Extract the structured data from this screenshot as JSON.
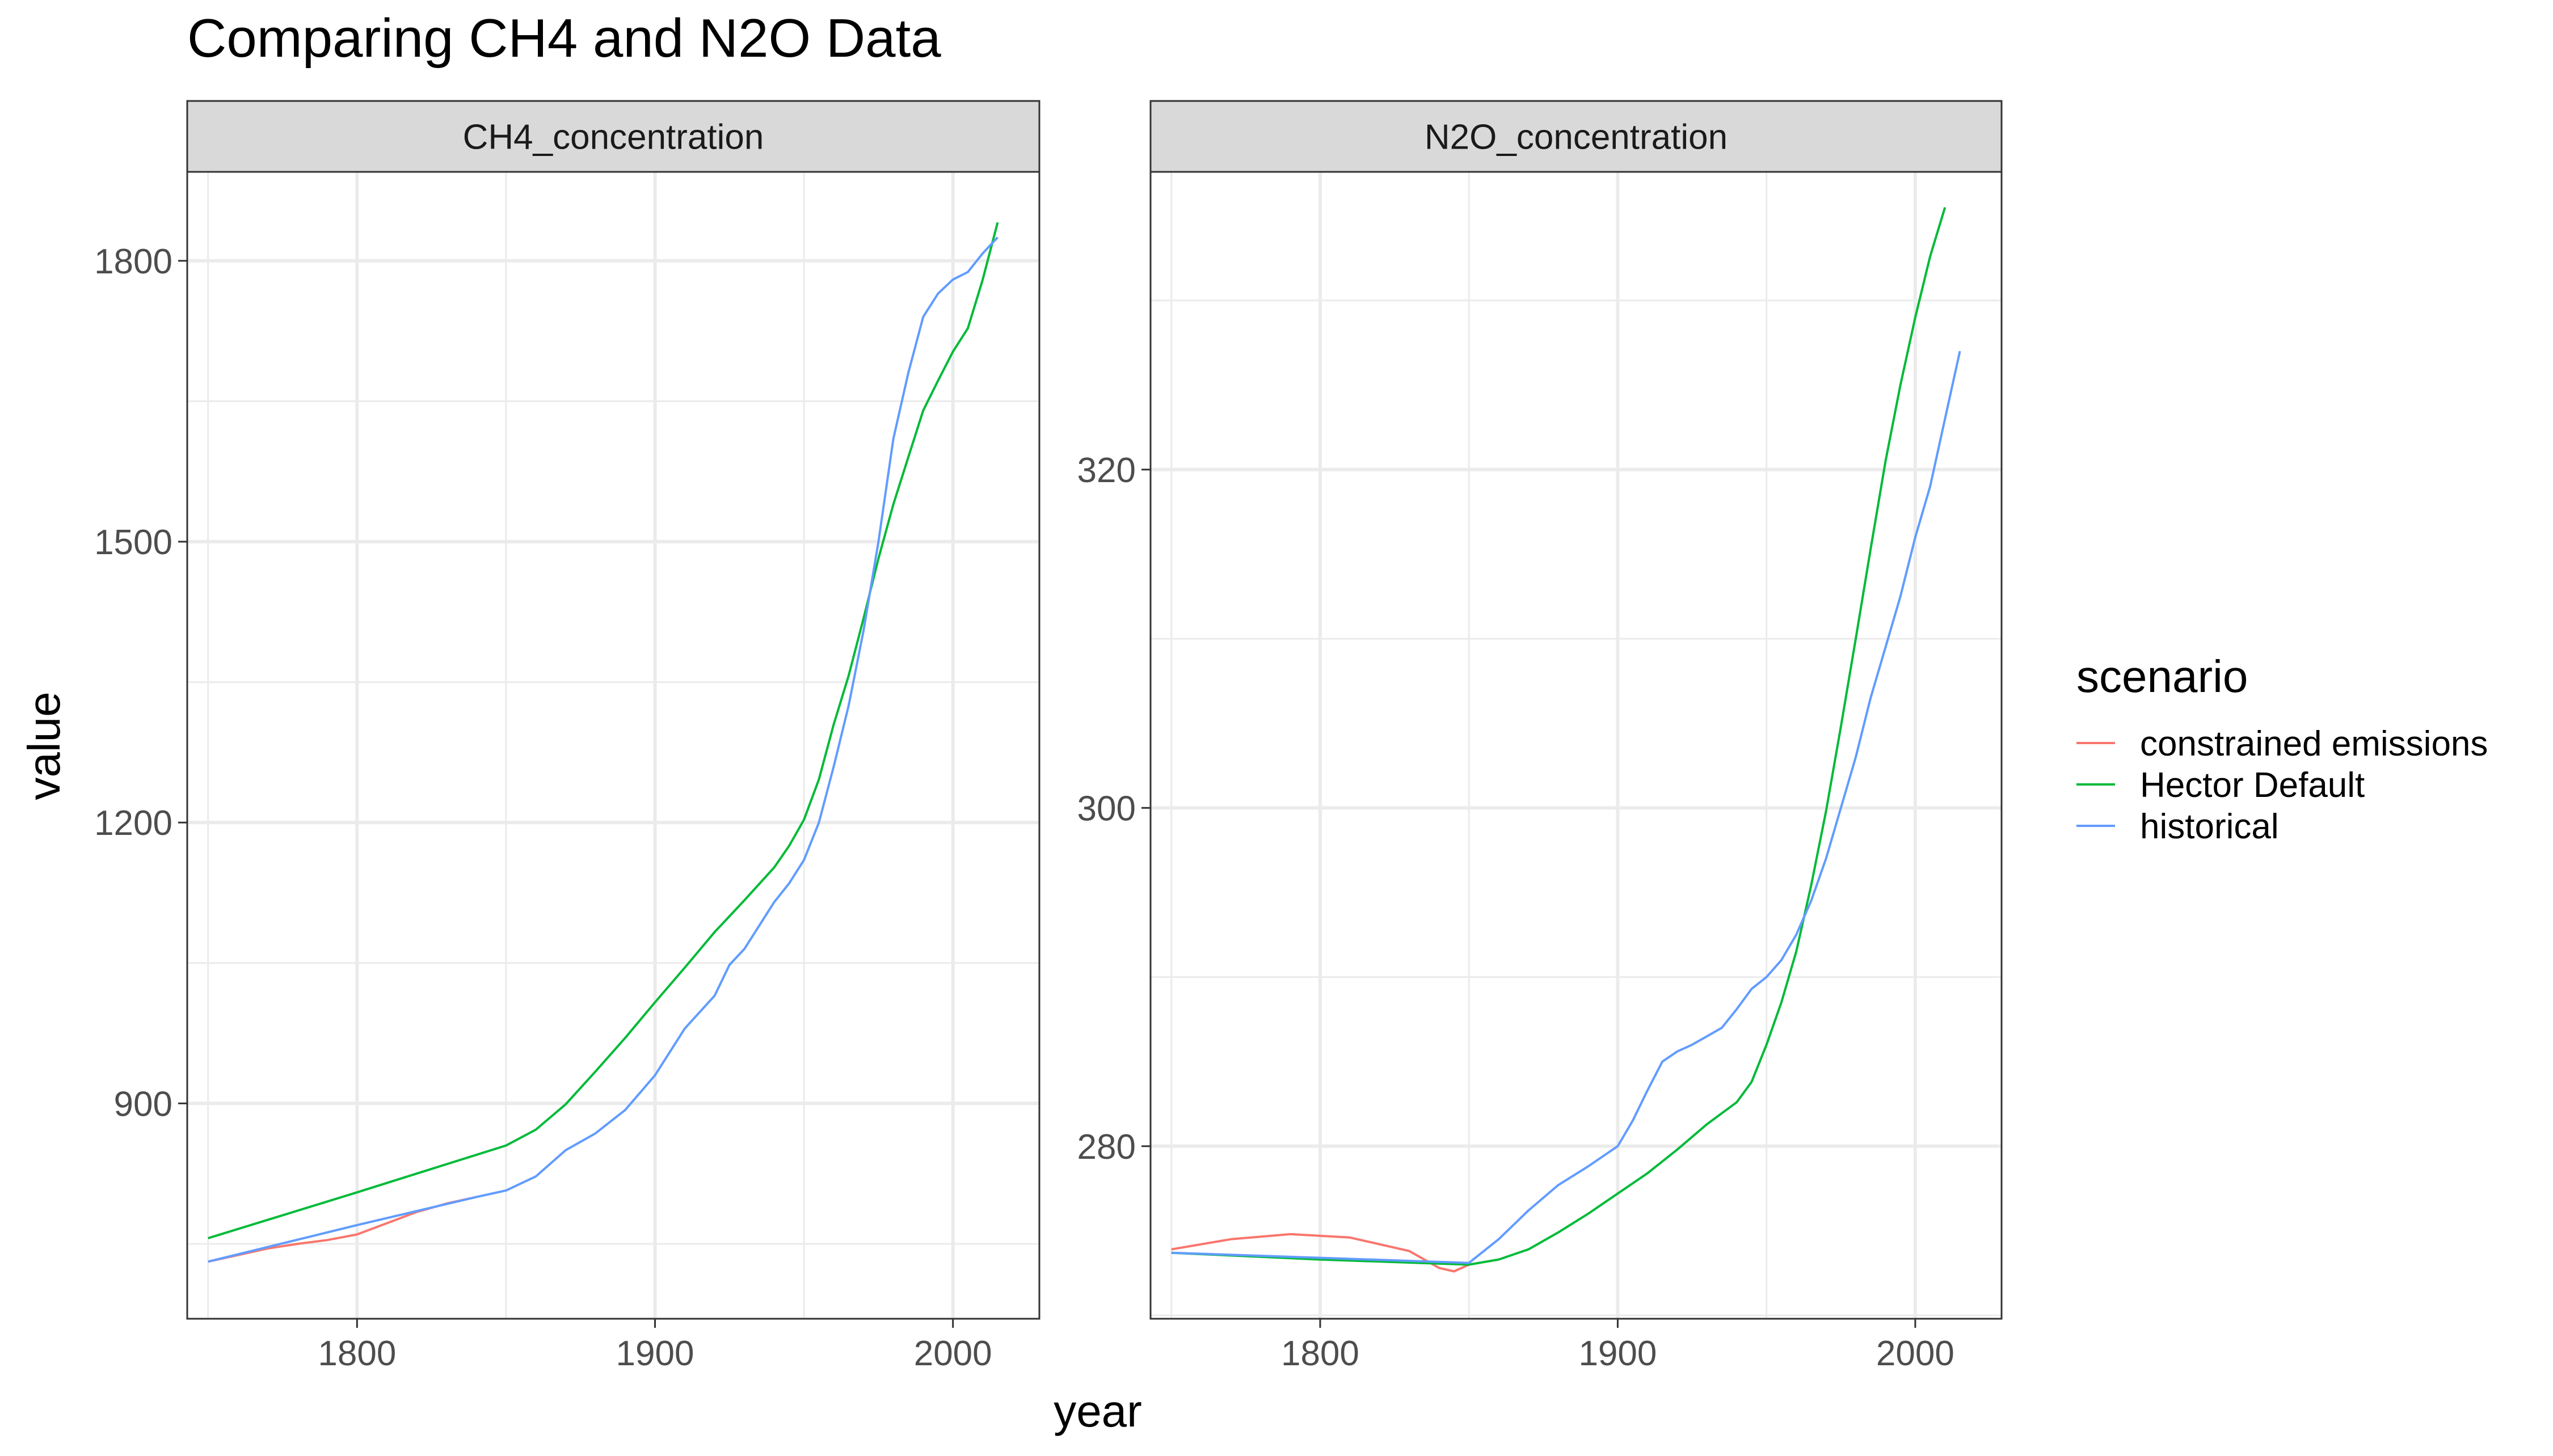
{
  "title": "Comparing CH4 and N2O Data",
  "xlabel": "year",
  "ylabel": "value",
  "legend": {
    "title": "scenario",
    "position": "right",
    "items": [
      {
        "label": "constrained emissions",
        "color": "#F8766D"
      },
      {
        "label": "Hector Default",
        "color": "#00BA38"
      },
      {
        "label": "historical",
        "color": "#619CFF"
      }
    ]
  },
  "chart_data": [
    {
      "type": "line",
      "facet": "CH4_concentration",
      "xlim": [
        1743,
        2029
      ],
      "ylim": [
        670,
        1895
      ],
      "x_ticks": [
        1800,
        1900,
        2000
      ],
      "y_ticks": [
        900,
        1200,
        1500,
        1800
      ],
      "grid": true,
      "series": [
        {
          "name": "constrained emissions",
          "color": "#F8766D",
          "points": [
            [
              1750,
              731
            ],
            [
              1760,
              738
            ],
            [
              1770,
              745
            ],
            [
              1780,
              750
            ],
            [
              1790,
              754
            ],
            [
              1800,
              760
            ],
            [
              1810,
              772
            ],
            [
              1820,
              784
            ],
            [
              1830,
              793
            ],
            [
              1840,
              800
            ]
          ]
        },
        {
          "name": "Hector Default",
          "color": "#00BA38",
          "points": [
            [
              1750,
              756
            ],
            [
              1800,
              805
            ],
            [
              1850,
              855
            ],
            [
              1860,
              872
            ],
            [
              1870,
              899
            ],
            [
              1880,
              934
            ],
            [
              1890,
              970
            ],
            [
              1900,
              1008
            ],
            [
              1910,
              1045
            ],
            [
              1920,
              1083
            ],
            [
              1930,
              1117
            ],
            [
              1940,
              1152
            ],
            [
              1945,
              1175
            ],
            [
              1950,
              1203
            ],
            [
              1955,
              1246
            ],
            [
              1960,
              1305
            ],
            [
              1965,
              1357
            ],
            [
              1970,
              1418
            ],
            [
              1975,
              1482
            ],
            [
              1980,
              1540
            ],
            [
              1985,
              1590
            ],
            [
              1990,
              1640
            ],
            [
              1995,
              1672
            ],
            [
              2000,
              1703
            ],
            [
              2005,
              1728
            ],
            [
              2010,
              1780
            ],
            [
              2015,
              1841
            ]
          ]
        },
        {
          "name": "historical",
          "color": "#619CFF",
          "points": [
            [
              1750,
              731
            ],
            [
              1800,
              770
            ],
            [
              1840,
              800
            ],
            [
              1850,
              807
            ],
            [
              1860,
              822
            ],
            [
              1870,
              850
            ],
            [
              1880,
              868
            ],
            [
              1890,
              893
            ],
            [
              1900,
              930
            ],
            [
              1910,
              980
            ],
            [
              1920,
              1015
            ],
            [
              1925,
              1048
            ],
            [
              1930,
              1065
            ],
            [
              1940,
              1115
            ],
            [
              1945,
              1135
            ],
            [
              1950,
              1160
            ],
            [
              1955,
              1200
            ],
            [
              1960,
              1260
            ],
            [
              1965,
              1325
            ],
            [
              1970,
              1405
            ],
            [
              1975,
              1500
            ],
            [
              1980,
              1610
            ],
            [
              1985,
              1680
            ],
            [
              1990,
              1740
            ],
            [
              1995,
              1765
            ],
            [
              2000,
              1780
            ],
            [
              2005,
              1788
            ],
            [
              2010,
              1808
            ],
            [
              2015,
              1825
            ]
          ]
        }
      ]
    },
    {
      "type": "line",
      "facet": "N2O_concentration",
      "xlim": [
        1743,
        2029
      ],
      "ylim": [
        269.8,
        337.6
      ],
      "x_ticks": [
        1800,
        1900,
        2000
      ],
      "y_ticks": [
        280,
        300,
        320
      ],
      "grid": true,
      "series": [
        {
          "name": "constrained emissions",
          "color": "#F8766D",
          "points": [
            [
              1750,
              273.9
            ],
            [
              1770,
              274.5
            ],
            [
              1790,
              274.8
            ],
            [
              1810,
              274.6
            ],
            [
              1830,
              273.8
            ],
            [
              1840,
              272.8
            ],
            [
              1845,
              272.6
            ],
            [
              1850,
              273.0
            ]
          ]
        },
        {
          "name": "Hector Default",
          "color": "#00BA38",
          "points": [
            [
              1750,
              273.7
            ],
            [
              1800,
              273.3
            ],
            [
              1850,
              273.0
            ],
            [
              1860,
              273.3
            ],
            [
              1870,
              273.9
            ],
            [
              1880,
              274.9
            ],
            [
              1890,
              276.0
            ],
            [
              1900,
              277.2
            ],
            [
              1910,
              278.4
            ],
            [
              1920,
              279.8
            ],
            [
              1930,
              281.3
            ],
            [
              1940,
              282.6
            ],
            [
              1945,
              283.8
            ],
            [
              1950,
              286.0
            ],
            [
              1955,
              288.5
            ],
            [
              1960,
              291.5
            ],
            [
              1965,
              295.4
            ],
            [
              1970,
              299.8
            ],
            [
              1975,
              304.8
            ],
            [
              1980,
              310.0
            ],
            [
              1985,
              315.3
            ],
            [
              1990,
              320.5
            ],
            [
              1995,
              325.0
            ],
            [
              2000,
              329.0
            ],
            [
              2005,
              332.6
            ],
            [
              2010,
              335.5
            ]
          ]
        },
        {
          "name": "historical",
          "color": "#619CFF",
          "points": [
            [
              1750,
              273.7
            ],
            [
              1800,
              273.4
            ],
            [
              1850,
              273.1
            ],
            [
              1860,
              274.5
            ],
            [
              1870,
              276.2
            ],
            [
              1880,
              277.7
            ],
            [
              1890,
              278.8
            ],
            [
              1900,
              280.0
            ],
            [
              1905,
              281.5
            ],
            [
              1910,
              283.3
            ],
            [
              1915,
              285.0
            ],
            [
              1920,
              285.6
            ],
            [
              1925,
              286.0
            ],
            [
              1930,
              286.5
            ],
            [
              1935,
              287.0
            ],
            [
              1940,
              288.1
            ],
            [
              1945,
              289.3
            ],
            [
              1950,
              290.0
            ],
            [
              1955,
              291.0
            ],
            [
              1960,
              292.5
            ],
            [
              1965,
              294.5
            ],
            [
              1970,
              297.0
            ],
            [
              1975,
              300.0
            ],
            [
              1980,
              303.0
            ],
            [
              1985,
              306.5
            ],
            [
              1990,
              309.5
            ],
            [
              1995,
              312.5
            ],
            [
              2000,
              316.0
            ],
            [
              2005,
              319.0
            ],
            [
              2010,
              323.0
            ],
            [
              2015,
              327.0
            ]
          ]
        }
      ]
    }
  ]
}
